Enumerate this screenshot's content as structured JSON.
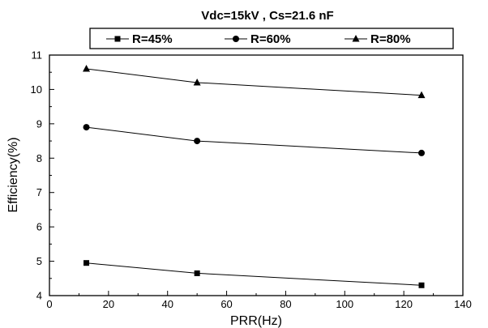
{
  "chart_data": {
    "type": "line",
    "title": "Vdc=15kV , Cs=21.6 nF",
    "xlabel": "PRR(Hz)",
    "ylabel": "Efficiency(%)",
    "xlim": [
      0,
      140
    ],
    "ylim": [
      4,
      11
    ],
    "xticks": [
      "0",
      "20",
      "40",
      "60",
      "80",
      "100",
      "120",
      "140"
    ],
    "yticks": [
      "4",
      "5",
      "6",
      "7",
      "8",
      "9",
      "10",
      "11"
    ],
    "grid": false,
    "legend_position": "top",
    "series": [
      {
        "name": "R=45%",
        "marker": "square",
        "points": [
          {
            "x": 12.5,
            "y": 4.95
          },
          {
            "x": 50,
            "y": 4.65
          },
          {
            "x": 126,
            "y": 4.3
          }
        ]
      },
      {
        "name": "R=60%",
        "marker": "circle",
        "points": [
          {
            "x": 12.5,
            "y": 8.9
          },
          {
            "x": 50,
            "y": 8.5
          },
          {
            "x": 126,
            "y": 8.15
          }
        ]
      },
      {
        "name": "R=80%",
        "marker": "triangle",
        "points": [
          {
            "x": 12.5,
            "y": 10.6
          },
          {
            "x": 50,
            "y": 10.2
          },
          {
            "x": 126,
            "y": 9.83
          }
        ]
      }
    ]
  }
}
